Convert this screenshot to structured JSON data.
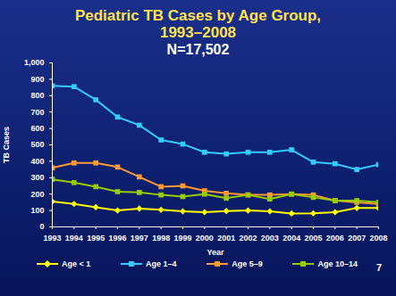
{
  "chart_data": {
    "type": "line",
    "title": "Pediatric TB Cases by Age Group, 1993–2008",
    "subtitle": "N=17,502",
    "x_label": "Year",
    "y_label": "TB Cases",
    "annotations": [
      "7"
    ],
    "x": [
      1993,
      1994,
      1995,
      1996,
      1997,
      1998,
      1999,
      2000,
      2001,
      2002,
      2003,
      2004,
      2005,
      2006,
      2007,
      2008
    ],
    "xlim": [
      1993,
      2008
    ],
    "xticks": [
      1993,
      1994,
      1995,
      1996,
      1997,
      1998,
      1999,
      2000,
      2001,
      2002,
      2003,
      2004,
      2005,
      2006,
      2007,
      2008
    ],
    "ylim": [
      0,
      1000
    ],
    "yticks": [
      0,
      100,
      200,
      300,
      400,
      500,
      600,
      700,
      800,
      900,
      {
        "value": 1000,
        "label": "1,000"
      }
    ],
    "grid": false,
    "legend": "bottom",
    "series": [
      {
        "name": "Age < 1",
        "color": "#ffff00",
        "marker": "diamond",
        "values": [
          155,
          140,
          120,
          100,
          112,
          105,
          95,
          90,
          97,
          100,
          95,
          82,
          83,
          90,
          115,
          115
        ]
      },
      {
        "name": "Age 1–4",
        "color": "#33ccff",
        "marker": "square",
        "values": [
          860,
          855,
          775,
          670,
          620,
          530,
          505,
          455,
          445,
          455,
          455,
          470,
          395,
          385,
          350,
          380
        ]
      },
      {
        "name": "Age 5–9",
        "color": "#ff9933",
        "marker": "square",
        "values": [
          360,
          390,
          390,
          365,
          305,
          245,
          250,
          220,
          205,
          195,
          195,
          200,
          195,
          160,
          150,
          140
        ]
      },
      {
        "name": "Age 10–14",
        "color": "#99cc00",
        "marker": "square",
        "values": [
          290,
          270,
          245,
          215,
          210,
          195,
          185,
          200,
          175,
          195,
          170,
          200,
          180,
          160,
          160,
          150
        ]
      }
    ]
  }
}
